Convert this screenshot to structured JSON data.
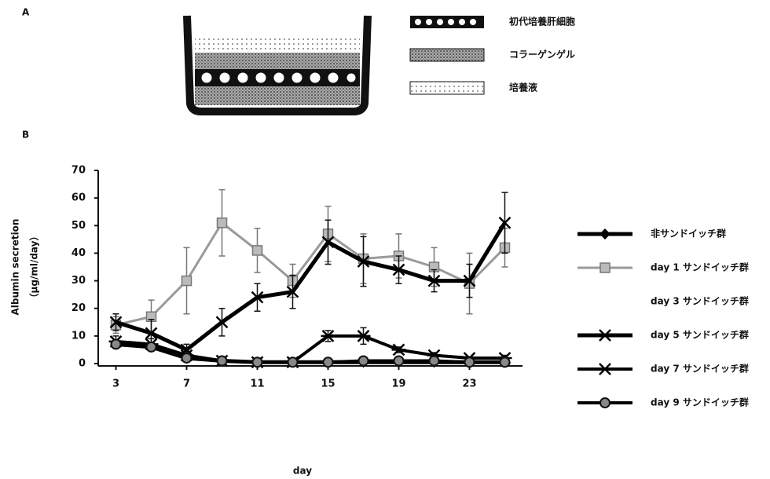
{
  "panel_a": {
    "label": "A",
    "legend": [
      "初代培養肝細胞",
      "コラーゲンゲル",
      "培養液"
    ]
  },
  "chart_data": {
    "type": "line",
    "panel_label": "B",
    "x_label": "day",
    "y_label": [
      "Albumin secretion",
      "（μg/ml/day）"
    ],
    "x": [
      3,
      5,
      7,
      9,
      11,
      13,
      15,
      17,
      19,
      21,
      23,
      25
    ],
    "xlim": [
      2,
      26
    ],
    "xticks": [
      3,
      7,
      11,
      15,
      19,
      23
    ],
    "ylim": [
      0,
      70
    ],
    "yticks": [
      0,
      10,
      20,
      30,
      40,
      50,
      60,
      70
    ],
    "series": [
      {
        "name": "非サンドイッチ群",
        "color": "#000000",
        "marker": "diamond",
        "values": [
          7,
          6,
          2,
          1,
          0.5,
          0.5,
          0.5,
          0.5,
          0.5,
          0.5,
          0.5,
          0.5
        ]
      },
      {
        "name": "day 1 サンドイッチ群",
        "color": "#9a9a9a",
        "marker": "square",
        "values": [
          14,
          17,
          30,
          51,
          41,
          30,
          47,
          38,
          39,
          35,
          29,
          42
        ],
        "errors": [
          3,
          6,
          12,
          12,
          8,
          6,
          10,
          9,
          8,
          7,
          11,
          7
        ]
      },
      {
        "name": "day 3 サンドイッチ群",
        "color": "#ffffff",
        "marker": "none",
        "values": [
          null,
          null,
          null,
          null,
          null,
          null,
          null,
          null,
          null,
          null,
          null,
          null
        ]
      },
      {
        "name": "day 5 サンドイッチ群",
        "color": "#000000",
        "marker": "x",
        "values": [
          15,
          11,
          5,
          15,
          24,
          26,
          44,
          37,
          34,
          30,
          30,
          51
        ],
        "errors": [
          3,
          5,
          2,
          5,
          5,
          6,
          8,
          9,
          5,
          4,
          6,
          11
        ]
      },
      {
        "name": "day 7 サンドイッチ群",
        "color": "#000000",
        "marker": "star",
        "values": [
          8,
          7,
          3,
          1,
          0.5,
          0.5,
          10,
          10,
          5,
          3,
          2,
          2
        ],
        "errors": [
          2,
          2,
          1,
          0.5,
          0.5,
          0.5,
          2,
          3,
          1,
          1,
          0.5,
          1
        ]
      },
      {
        "name": "day 9 サンドイッチ群",
        "color": "#000000",
        "marker": "circle",
        "values": [
          7,
          6,
          2,
          1,
          0.5,
          0.5,
          0.5,
          1,
          1,
          1,
          0.5,
          0.5
        ]
      }
    ]
  }
}
